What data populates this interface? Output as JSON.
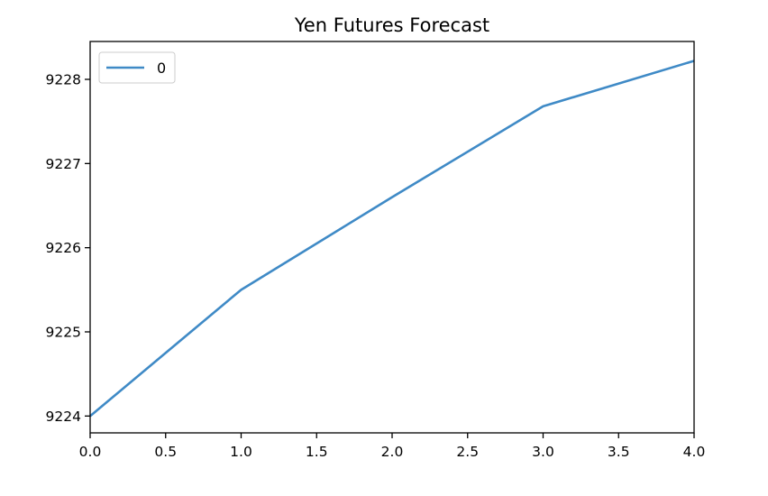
{
  "chart_data": {
    "type": "line",
    "title": "Yen Futures Forecast",
    "xlabel": "",
    "ylabel": "",
    "x": [
      0,
      1,
      2,
      3,
      4
    ],
    "series": [
      {
        "name": "0",
        "values": [
          9224.0,
          9225.5,
          9226.6,
          9227.68,
          9228.22
        ],
        "color": "#3f8ac6"
      }
    ],
    "xlim": [
      0.0,
      4.0
    ],
    "ylim": [
      9223.8,
      9228.45
    ],
    "x_ticks": [
      0.0,
      0.5,
      1.0,
      1.5,
      2.0,
      2.5,
      3.0,
      3.5,
      4.0
    ],
    "x_tick_labels": [
      "0.0",
      "0.5",
      "1.0",
      "1.5",
      "2.0",
      "2.5",
      "3.0",
      "3.5",
      "4.0"
    ],
    "y_ticks": [
      9224,
      9225,
      9226,
      9227,
      9228
    ],
    "y_tick_labels": [
      "9224",
      "9225",
      "9226",
      "9227",
      "9228"
    ],
    "grid": false,
    "legend": "upper-left"
  }
}
